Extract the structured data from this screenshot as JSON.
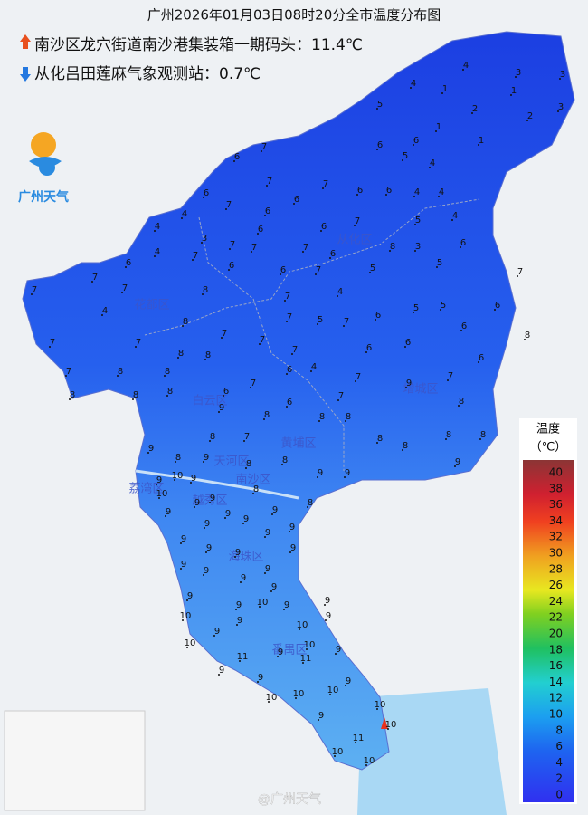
{
  "title": "广州2026年01月03日08时20分全市温度分布图",
  "max_station": "南沙区龙穴街道南沙港集装箱一期码头：11.4℃",
  "min_station": "从化吕田莲麻气象观测站：0.7℃",
  "logo": "广州天气",
  "watermark": "@广州天气",
  "districts": [
    "从化区",
    "花都区",
    "白云区",
    "增城区",
    "黄埔区",
    "天河区",
    "荔湾区",
    "越秀区",
    "海珠区",
    "番禺区",
    "南沙区"
  ],
  "legend": {
    "title": "温度",
    "unit": "（℃）",
    "ticks": [
      0,
      2,
      4,
      6,
      8,
      10,
      12,
      14,
      16,
      18,
      20,
      22,
      24,
      26,
      28,
      30,
      32,
      34,
      36,
      38,
      40
    ]
  },
  "stations": [
    4,
    3,
    3,
    1,
    1,
    4,
    5,
    2,
    2,
    3,
    1,
    1,
    6,
    6,
    7,
    6,
    4,
    5,
    7,
    7,
    6,
    6,
    6,
    4,
    4,
    6,
    7,
    6,
    4,
    4,
    5,
    4,
    7,
    6,
    6,
    3,
    7,
    8,
    6,
    7,
    4,
    7,
    7,
    6,
    3,
    6,
    7,
    6,
    6,
    7,
    5,
    5,
    7,
    6,
    5,
    5,
    4,
    7,
    8,
    7,
    7,
    4,
    8,
    7,
    5,
    6,
    6,
    8,
    7,
    7,
    7,
    6,
    6,
    7,
    7,
    8,
    8,
    8,
    8,
    7,
    7,
    6,
    7,
    6,
    4,
    7,
    6,
    7,
    9,
    8,
    8,
    8,
    7,
    8,
    9,
    6,
    8,
    8,
    8,
    7,
    8,
    8,
    8,
    8,
    9,
    8,
    8,
    9,
    8,
    9,
    9,
    9,
    8,
    9,
    10,
    10,
    9,
    8,
    8,
    9,
    9,
    9,
    9,
    9,
    9,
    9,
    9,
    9,
    9,
    9,
    9,
    9,
    9,
    9,
    9,
    9,
    9,
    9,
    9,
    10,
    9,
    9,
    10,
    9,
    10,
    9,
    9,
    10,
    9,
    9,
    11,
    11,
    10,
    9,
    9,
    9,
    10,
    10,
    10,
    9,
    10,
    10,
    11,
    10,
    10,
    10
  ]
}
